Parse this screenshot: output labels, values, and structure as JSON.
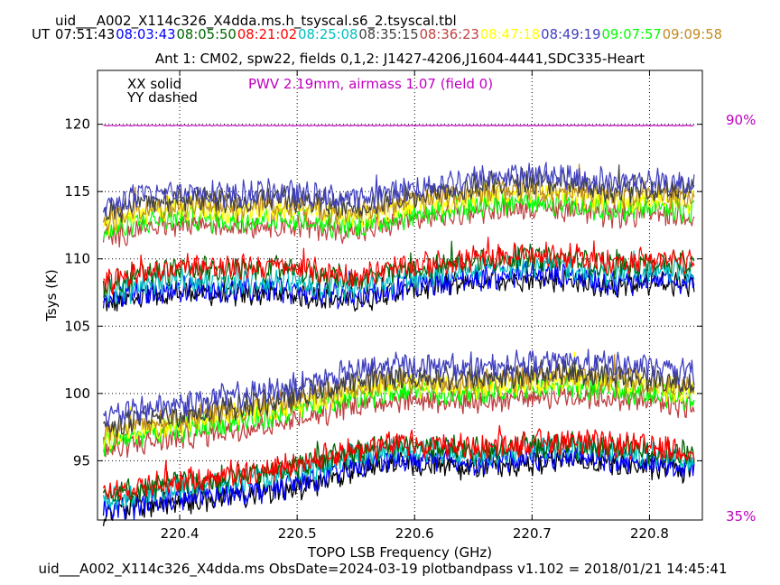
{
  "header": {
    "title": "uid___A002_X114c326_X4dda.ms.h_tsyscal.s6_2.tsyscal.tbl",
    "ut_prefix": "UT",
    "times": [
      {
        "label": "07:51:43",
        "color": "#000000"
      },
      {
        "label": "08:03:43",
        "color": "#0000ff"
      },
      {
        "label": "08:05:50",
        "color": "#006400"
      },
      {
        "label": "08:21:02",
        "color": "#ff0000"
      },
      {
        "label": "08:25:08",
        "color": "#00bfbf"
      },
      {
        "label": "08:35:15",
        "color": "#404040"
      },
      {
        "label": "08:36:23",
        "color": "#c04040"
      },
      {
        "label": "08:47:18",
        "color": "#ffff00"
      },
      {
        "label": "08:49:19",
        "color": "#4040c0"
      },
      {
        "label": "09:07:57",
        "color": "#00ff00"
      },
      {
        "label": "09:09:58",
        "color": "#c08c20"
      }
    ],
    "subtitle": "Ant 1: CM02,  spw22,  fields 0,1,2: J1427-4206,J1604-4441,SDC335-Heart"
  },
  "legend": {
    "xx": "XX solid",
    "yy": "YY dashed",
    "pwv": "PWV 2.19mm, airmass 1.07 (field 0)",
    "pwv_color": "#c000c0"
  },
  "right_axis": {
    "top_label": "90%",
    "bottom_label": "35%",
    "color": "#c000c0"
  },
  "footer": "uid___A002_X114c326_X4dda.ms  ObsDate=2024-03-19   plotbandpass v1.102 = 2018/01/21 14:45:41",
  "chart_data": {
    "type": "line",
    "xlabel": "TOPO LSB Frequency (GHz)",
    "ylabel": "Tsys (K)",
    "xlim": [
      220.33,
      220.845
    ],
    "ylim": [
      90.6,
      124.0
    ],
    "xticks": [
      220.4,
      220.5,
      220.6,
      220.7,
      220.8
    ],
    "xtick_labels": [
      "220.4",
      "220.5",
      "220.6",
      "220.7",
      "220.8"
    ],
    "yticks": [
      95,
      100,
      105,
      110,
      115,
      120
    ],
    "ytick_labels": [
      "95",
      "100",
      "105",
      "110",
      "115",
      "120"
    ],
    "grid": true,
    "x_range": [
      220.335,
      220.838
    ],
    "atmospheric_transmission": {
      "value": 119.9,
      "color": "#c000c0"
    },
    "series": [
      {
        "polarization": "XX",
        "color": "#000000",
        "values": [
          106.5,
          107.2,
          107.6,
          107.3,
          107.5,
          107.2,
          106.9,
          107.6,
          108.0,
          108.4,
          108.6,
          108.5,
          107.9,
          108.2,
          108.0
        ]
      },
      {
        "polarization": "XX",
        "color": "#0000ff",
        "values": [
          106.8,
          107.5,
          107.8,
          107.6,
          107.8,
          107.5,
          107.2,
          107.9,
          108.3,
          108.6,
          108.9,
          108.8,
          108.2,
          108.5,
          108.3
        ]
      },
      {
        "polarization": "XX",
        "color": "#00bfbf",
        "values": [
          107.4,
          108.2,
          108.5,
          108.2,
          108.4,
          108.1,
          107.8,
          108.5,
          108.9,
          109.3,
          109.6,
          109.4,
          108.9,
          109.2,
          109.0
        ]
      },
      {
        "polarization": "XX",
        "color": "#006400",
        "values": [
          108.0,
          108.9,
          109.3,
          109.1,
          109.3,
          108.9,
          108.5,
          109.1,
          109.5,
          109.9,
          110.1,
          110.0,
          109.5,
          109.8,
          109.6
        ]
      },
      {
        "polarization": "XX",
        "color": "#ff0000",
        "values": [
          108.2,
          109.1,
          109.5,
          109.3,
          109.5,
          109.1,
          108.7,
          109.3,
          109.7,
          110.1,
          110.3,
          110.2,
          109.7,
          110.0,
          109.8
        ]
      },
      {
        "polarization": "XX",
        "color": "#c04040",
        "values": [
          111.5,
          112.4,
          112.7,
          112.4,
          112.6,
          112.3,
          112.0,
          112.7,
          113.2,
          113.6,
          113.9,
          113.7,
          113.2,
          113.4,
          113.2
        ]
      },
      {
        "polarization": "XX",
        "color": "#00ff00",
        "values": [
          111.9,
          112.8,
          113.1,
          112.8,
          113.0,
          112.7,
          112.4,
          113.1,
          113.6,
          114.0,
          114.3,
          114.1,
          113.6,
          113.8,
          113.6
        ]
      },
      {
        "polarization": "XX",
        "color": "#ffff00",
        "values": [
          112.6,
          113.5,
          113.8,
          113.5,
          113.7,
          113.4,
          113.1,
          113.8,
          114.3,
          114.7,
          115.0,
          114.8,
          114.3,
          114.5,
          114.3
        ]
      },
      {
        "polarization": "XX",
        "color": "#c08c20",
        "values": [
          112.9,
          113.8,
          114.1,
          113.8,
          114.0,
          113.7,
          113.4,
          114.1,
          114.6,
          115.0,
          115.3,
          115.1,
          114.6,
          114.8,
          114.6
        ]
      },
      {
        "polarization": "XX",
        "color": "#404040",
        "values": [
          113.4,
          114.3,
          114.6,
          114.3,
          114.5,
          114.2,
          113.9,
          114.6,
          115.1,
          115.5,
          115.8,
          115.6,
          115.1,
          115.3,
          115.1
        ]
      },
      {
        "polarization": "XX",
        "color": "#4040c0",
        "values": [
          113.9,
          114.8,
          115.1,
          114.8,
          115.0,
          114.7,
          114.4,
          115.1,
          115.6,
          116.0,
          116.3,
          116.1,
          115.6,
          115.8,
          115.6
        ]
      },
      {
        "polarization": "YY",
        "color": "#000000",
        "values": [
          91.2,
          91.7,
          92.0,
          92.4,
          92.7,
          93.3,
          94.3,
          94.8,
          94.7,
          94.5,
          94.9,
          95.0,
          94.8,
          94.5,
          94.2
        ]
      },
      {
        "polarization": "YY",
        "color": "#0000ff",
        "values": [
          91.3,
          91.8,
          92.2,
          92.6,
          92.9,
          93.6,
          94.6,
          95.1,
          95.0,
          94.8,
          95.2,
          95.3,
          95.1,
          94.8,
          94.5
        ]
      },
      {
        "polarization": "YY",
        "color": "#00bfbf",
        "values": [
          92.2,
          92.7,
          93.1,
          93.5,
          93.8,
          94.5,
          95.4,
          95.9,
          95.8,
          95.5,
          95.9,
          96.0,
          95.8,
          95.5,
          95.2
        ]
      },
      {
        "polarization": "YY",
        "color": "#006400",
        "values": [
          92.5,
          93.0,
          93.4,
          93.8,
          94.2,
          94.9,
          95.7,
          96.1,
          96.0,
          95.8,
          96.1,
          96.2,
          96.0,
          95.8,
          95.5
        ]
      },
      {
        "polarization": "YY",
        "color": "#ff0000",
        "values": [
          92.7,
          93.2,
          93.6,
          94.0,
          94.4,
          95.1,
          95.9,
          96.3,
          96.2,
          96.0,
          96.3,
          96.4,
          96.2,
          96.0,
          95.7
        ]
      },
      {
        "polarization": "YY",
        "color": "#c04040",
        "values": [
          95.7,
          96.4,
          96.8,
          97.3,
          97.7,
          98.4,
          99.2,
          99.6,
          99.5,
          99.4,
          99.8,
          99.9,
          99.7,
          99.4,
          99.0
        ]
      },
      {
        "polarization": "YY",
        "color": "#00ff00",
        "values": [
          96.3,
          97.0,
          97.4,
          97.9,
          98.3,
          99.0,
          99.8,
          100.2,
          100.1,
          100.0,
          100.4,
          100.5,
          100.3,
          100.0,
          99.6
        ]
      },
      {
        "polarization": "YY",
        "color": "#ffff00",
        "values": [
          96.8,
          97.5,
          97.9,
          98.4,
          98.8,
          99.5,
          100.3,
          100.7,
          100.6,
          100.5,
          100.9,
          101.0,
          100.8,
          100.5,
          100.1
        ]
      },
      {
        "polarization": "YY",
        "color": "#c08c20",
        "values": [
          97.1,
          97.8,
          98.2,
          98.7,
          99.1,
          99.8,
          100.6,
          101.0,
          100.9,
          100.8,
          101.2,
          101.3,
          101.1,
          100.8,
          100.4
        ]
      },
      {
        "polarization": "YY",
        "color": "#404040",
        "values": [
          97.4,
          98.1,
          98.5,
          99.0,
          99.4,
          100.1,
          100.9,
          101.3,
          101.2,
          101.1,
          101.5,
          101.6,
          101.4,
          101.1,
          100.7
        ]
      },
      {
        "polarization": "YY",
        "color": "#4040c0",
        "values": [
          98.2,
          98.9,
          99.3,
          99.8,
          100.2,
          100.9,
          101.7,
          102.1,
          102.0,
          101.9,
          102.3,
          102.4,
          102.2,
          101.9,
          101.5
        ]
      }
    ]
  }
}
